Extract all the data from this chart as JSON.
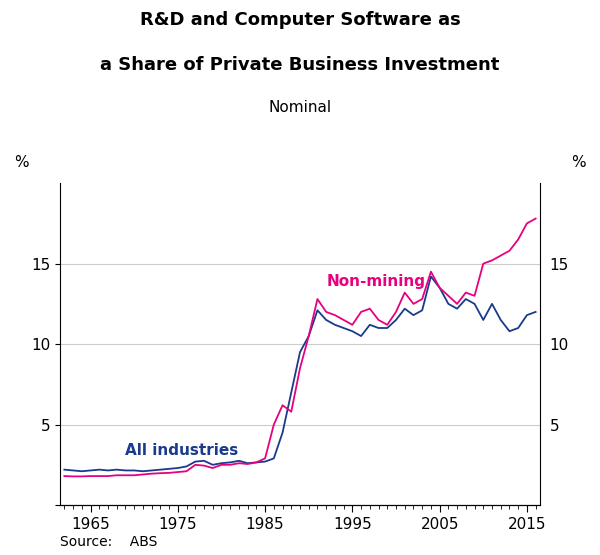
{
  "title_line1": "R&D and Computer Software as",
  "title_line2": "a Share of Private Business Investment",
  "subtitle": "Nominal",
  "ylabel_left": "%",
  "ylabel_right": "%",
  "source": "Source:    ABS",
  "ylim": [
    0,
    20
  ],
  "yticks": [
    0,
    5,
    10,
    15
  ],
  "xlim": [
    1961.5,
    2016.5
  ],
  "xticks": [
    1965,
    1975,
    1985,
    1995,
    2005,
    2015
  ],
  "all_industries_color": "#1a3a8c",
  "non_mining_color": "#e8007f",
  "all_industries_label": "All industries",
  "non_mining_label": "Non-mining",
  "years": [
    1962,
    1963,
    1964,
    1965,
    1966,
    1967,
    1968,
    1969,
    1970,
    1971,
    1972,
    1973,
    1974,
    1975,
    1976,
    1977,
    1978,
    1979,
    1980,
    1981,
    1982,
    1983,
    1984,
    1985,
    1986,
    1987,
    1988,
    1989,
    1990,
    1991,
    1992,
    1993,
    1994,
    1995,
    1996,
    1997,
    1998,
    1999,
    2000,
    2001,
    2002,
    2003,
    2004,
    2005,
    2006,
    2007,
    2008,
    2009,
    2010,
    2011,
    2012,
    2013,
    2014,
    2015,
    2016
  ],
  "all_industries": [
    2.2,
    2.15,
    2.1,
    2.15,
    2.2,
    2.15,
    2.2,
    2.15,
    2.15,
    2.1,
    2.15,
    2.2,
    2.25,
    2.3,
    2.4,
    2.7,
    2.75,
    2.5,
    2.6,
    2.65,
    2.75,
    2.6,
    2.65,
    2.7,
    2.9,
    4.5,
    7.0,
    9.5,
    10.5,
    12.1,
    11.5,
    11.2,
    11.0,
    10.8,
    10.5,
    11.2,
    11.0,
    11.0,
    11.5,
    12.2,
    11.8,
    12.1,
    14.2,
    13.5,
    12.5,
    12.2,
    12.8,
    12.5,
    11.5,
    12.5,
    11.5,
    10.8,
    11.0,
    11.8,
    12.0
  ],
  "non_mining": [
    1.8,
    1.78,
    1.78,
    1.8,
    1.8,
    1.8,
    1.85,
    1.85,
    1.85,
    1.9,
    1.95,
    1.98,
    2.0,
    2.05,
    2.1,
    2.5,
    2.45,
    2.3,
    2.5,
    2.5,
    2.6,
    2.55,
    2.65,
    2.9,
    5.0,
    6.2,
    5.8,
    8.5,
    10.5,
    12.8,
    12.0,
    11.8,
    11.5,
    11.2,
    12.0,
    12.2,
    11.5,
    11.2,
    12.0,
    13.2,
    12.5,
    12.8,
    14.5,
    13.5,
    13.0,
    12.5,
    13.2,
    13.0,
    15.0,
    15.2,
    15.5,
    15.8,
    16.5,
    17.5,
    17.8
  ]
}
